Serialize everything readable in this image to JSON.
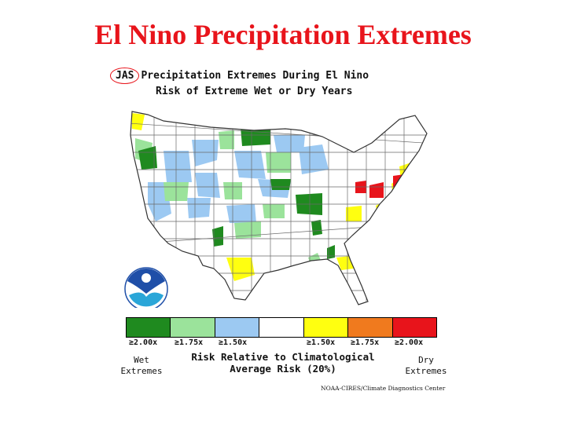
{
  "slide": {
    "title": "El Nino Precipitation Extremes"
  },
  "map": {
    "season": "JAS",
    "heading_rest": "Precipitation Extremes During El Nino",
    "subheading": "Risk of Extreme Wet or Dry Years",
    "logo_icon": "noaa-logo-icon",
    "region_colors": {
      "wet_2_00": "#1f8a1f",
      "wet_1_75": "#9be39b",
      "wet_1_50": "#9cc9f2",
      "neutral": "#ffffff",
      "dry_1_50": "#ffff10",
      "dry_1_75": "#f07a1e",
      "dry_2_00": "#e8141b"
    }
  },
  "legend": {
    "swatches": [
      {
        "label": "≥2.00x",
        "color": "#1f8a1f"
      },
      {
        "label": "≥1.75x",
        "color": "#9be39b"
      },
      {
        "label": "≥1.50x",
        "color": "#9cc9f2"
      },
      {
        "label": "",
        "color": "#ffffff"
      },
      {
        "label": "≥1.50x",
        "color": "#ffff10"
      },
      {
        "label": "≥1.75x",
        "color": "#f07a1e"
      },
      {
        "label": "≥2.00x",
        "color": "#e8141b"
      }
    ],
    "wet_label_1": "Wet",
    "wet_label_2": "Extremes",
    "dry_label_1": "Dry",
    "dry_label_2": "Extremes",
    "title_1": "Risk Relative to Climatological",
    "title_2": "Average Risk (20%)"
  },
  "credit": "NOAA-CIRES/Climate Diagnostics Center"
}
